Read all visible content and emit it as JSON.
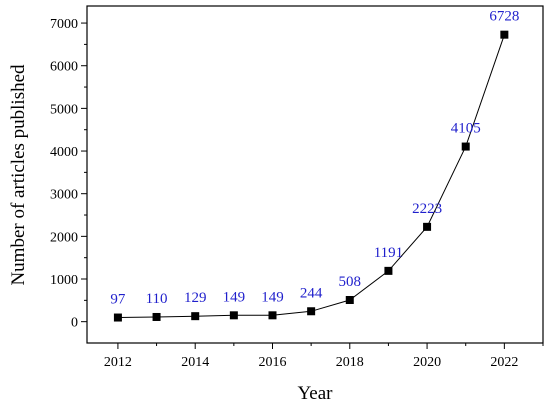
{
  "chart_data": {
    "type": "line",
    "xlabel": "Year",
    "ylabel": "Number of articles published",
    "x": [
      2012,
      2013,
      2014,
      2015,
      2016,
      2017,
      2018,
      2019,
      2020,
      2021,
      2022
    ],
    "series": [
      {
        "values": [
          97,
          110,
          129,
          149,
          149,
          244,
          508,
          1191,
          2223,
          4105,
          6728
        ]
      }
    ],
    "data_labels": [
      "97",
      "110",
      "129",
      "149",
      "149",
      "244",
      "508",
      "1191",
      "2223",
      "4105",
      "6728"
    ],
    "xlim": [
      2011.2,
      2023
    ],
    "ylim": [
      -500,
      7400
    ],
    "x_ticks": [
      2012,
      2014,
      2016,
      2018,
      2020,
      2022
    ],
    "x_tick_labels": [
      "2012",
      "2014",
      "2016",
      "2018",
      "2020",
      "2022"
    ],
    "y_ticks": [
      0,
      1000,
      2000,
      3000,
      4000,
      5000,
      6000,
      7000
    ],
    "y_tick_labels": [
      "0",
      "1000",
      "2000",
      "3000",
      "4000",
      "5000",
      "6000",
      "7000"
    ],
    "grid": false,
    "legend": "none",
    "line_color": "#000000",
    "marker": "square",
    "marker_color": "#000000",
    "label_color": "#1f1fcc"
  }
}
